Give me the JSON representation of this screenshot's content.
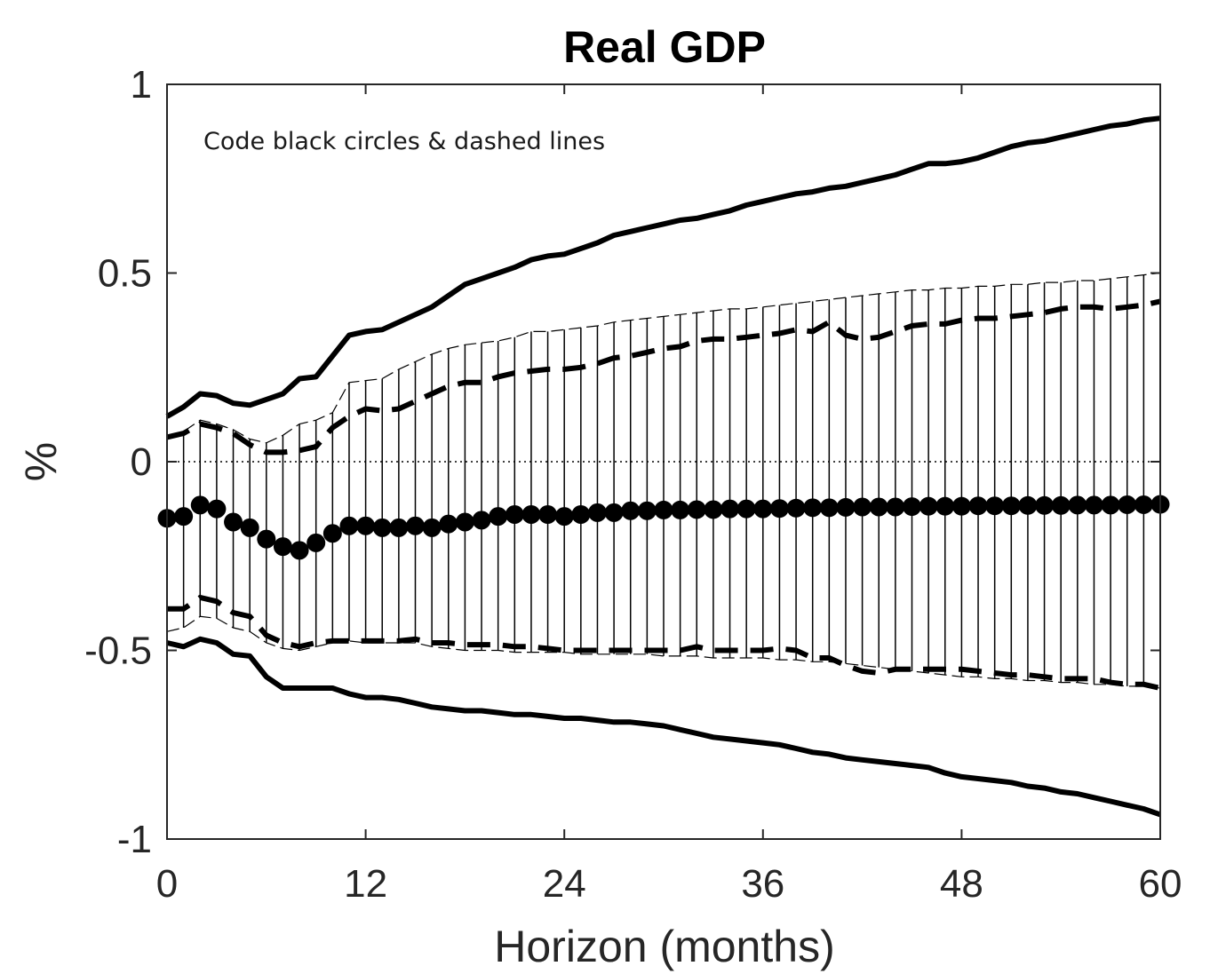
{
  "chart_data": {
    "type": "line",
    "title": "Real GDP",
    "xlabel": "Horizon (months)",
    "ylabel": "%",
    "annotation": "Code black circles & dashed lines",
    "xlim": [
      0,
      60
    ],
    "ylim": [
      -1,
      1
    ],
    "xticks": [
      0,
      12,
      24,
      36,
      48,
      60
    ],
    "xtick_labels": [
      "0",
      "12",
      "24",
      "36",
      "48",
      "60"
    ],
    "yticks": [
      -1,
      -0.5,
      0,
      0.5,
      1
    ],
    "ytick_labels": [
      "-1",
      "-0.5",
      "0",
      "0.5",
      "1"
    ],
    "zero_line": true,
    "grid": false,
    "x": [
      0,
      1,
      2,
      3,
      4,
      5,
      6,
      7,
      8,
      9,
      10,
      11,
      12,
      13,
      14,
      15,
      16,
      17,
      18,
      19,
      20,
      21,
      22,
      23,
      24,
      25,
      26,
      27,
      28,
      29,
      30,
      31,
      32,
      33,
      34,
      35,
      36,
      37,
      38,
      39,
      40,
      41,
      42,
      43,
      44,
      45,
      46,
      47,
      48,
      49,
      50,
      51,
      52,
      53,
      54,
      55,
      56,
      57,
      58,
      59,
      60
    ],
    "series": [
      {
        "style": "black-circles",
        "values": [
          -0.15,
          -0.145,
          -0.115,
          -0.125,
          -0.16,
          -0.175,
          -0.205,
          -0.225,
          -0.235,
          -0.215,
          -0.19,
          -0.17,
          -0.17,
          -0.175,
          -0.175,
          -0.17,
          -0.175,
          -0.165,
          -0.16,
          -0.155,
          -0.145,
          -0.14,
          -0.14,
          -0.14,
          -0.145,
          -0.14,
          -0.135,
          -0.135,
          -0.13,
          -0.13,
          -0.128,
          -0.128,
          -0.127,
          -0.127,
          -0.125,
          -0.125,
          -0.125,
          -0.124,
          -0.123,
          -0.122,
          -0.122,
          -0.121,
          -0.12,
          -0.12,
          -0.12,
          -0.119,
          -0.118,
          -0.118,
          -0.118,
          -0.117,
          -0.117,
          -0.117,
          -0.116,
          -0.116,
          -0.116,
          -0.115,
          -0.115,
          -0.115,
          -0.114,
          -0.114,
          -0.113
        ]
      },
      {
        "style": "dashed-upper",
        "values": [
          0.065,
          0.075,
          0.1,
          0.09,
          0.075,
          0.045,
          0.025,
          0.025,
          0.03,
          0.04,
          0.09,
          0.12,
          0.14,
          0.135,
          0.14,
          0.16,
          0.18,
          0.2,
          0.21,
          0.21,
          0.225,
          0.235,
          0.24,
          0.245,
          0.245,
          0.25,
          0.26,
          0.275,
          0.28,
          0.29,
          0.3,
          0.305,
          0.32,
          0.325,
          0.325,
          0.33,
          0.335,
          0.34,
          0.35,
          0.345,
          0.37,
          0.335,
          0.325,
          0.33,
          0.345,
          0.36,
          0.365,
          0.365,
          0.375,
          0.38,
          0.38,
          0.385,
          0.39,
          0.395,
          0.405,
          0.41,
          0.41,
          0.405,
          0.41,
          0.415,
          0.425
        ]
      },
      {
        "style": "dashed-lower",
        "values": [
          -0.39,
          -0.39,
          -0.36,
          -0.37,
          -0.4,
          -0.41,
          -0.46,
          -0.48,
          -0.49,
          -0.48,
          -0.475,
          -0.475,
          -0.475,
          -0.475,
          -0.475,
          -0.47,
          -0.48,
          -0.48,
          -0.485,
          -0.485,
          -0.485,
          -0.49,
          -0.49,
          -0.495,
          -0.5,
          -0.5,
          -0.5,
          -0.5,
          -0.5,
          -0.5,
          -0.5,
          -0.5,
          -0.49,
          -0.5,
          -0.5,
          -0.5,
          -0.5,
          -0.495,
          -0.5,
          -0.52,
          -0.52,
          -0.54,
          -0.555,
          -0.56,
          -0.55,
          -0.55,
          -0.55,
          -0.55,
          -0.55,
          -0.555,
          -0.56,
          -0.565,
          -0.565,
          -0.57,
          -0.575,
          -0.575,
          -0.575,
          -0.585,
          -0.59,
          -0.59,
          -0.6
        ]
      },
      {
        "style": "solid-upper",
        "values": [
          0.12,
          0.145,
          0.18,
          0.175,
          0.155,
          0.15,
          0.165,
          0.18,
          0.22,
          0.225,
          0.28,
          0.335,
          0.345,
          0.35,
          0.37,
          0.39,
          0.41,
          0.44,
          0.47,
          0.485,
          0.5,
          0.515,
          0.535,
          0.545,
          0.55,
          0.565,
          0.58,
          0.6,
          0.61,
          0.62,
          0.63,
          0.64,
          0.645,
          0.655,
          0.665,
          0.68,
          0.69,
          0.7,
          0.71,
          0.715,
          0.725,
          0.73,
          0.74,
          0.75,
          0.76,
          0.775,
          0.79,
          0.79,
          0.795,
          0.805,
          0.82,
          0.835,
          0.845,
          0.85,
          0.86,
          0.87,
          0.88,
          0.89,
          0.895,
          0.905,
          0.91
        ]
      },
      {
        "style": "solid-lower",
        "values": [
          -0.48,
          -0.49,
          -0.47,
          -0.48,
          -0.51,
          -0.515,
          -0.57,
          -0.6,
          -0.6,
          -0.6,
          -0.6,
          -0.615,
          -0.625,
          -0.625,
          -0.63,
          -0.64,
          -0.65,
          -0.655,
          -0.66,
          -0.66,
          -0.665,
          -0.67,
          -0.67,
          -0.675,
          -0.68,
          -0.68,
          -0.685,
          -0.69,
          -0.69,
          -0.695,
          -0.7,
          -0.71,
          -0.72,
          -0.73,
          -0.735,
          -0.74,
          -0.745,
          -0.75,
          -0.76,
          -0.77,
          -0.775,
          -0.785,
          -0.79,
          -0.795,
          -0.8,
          -0.805,
          -0.81,
          -0.825,
          -0.835,
          -0.84,
          -0.845,
          -0.85,
          -0.86,
          -0.865,
          -0.875,
          -0.88,
          -0.89,
          -0.9,
          -0.91,
          -0.92,
          -0.935
        ]
      },
      {
        "style": "band-upper",
        "values": [
          0.07,
          0.08,
          0.11,
          0.1,
          0.085,
          0.06,
          0.05,
          0.07,
          0.1,
          0.11,
          0.13,
          0.21,
          0.215,
          0.22,
          0.245,
          0.265,
          0.285,
          0.3,
          0.31,
          0.315,
          0.32,
          0.33,
          0.345,
          0.345,
          0.35,
          0.355,
          0.36,
          0.37,
          0.375,
          0.38,
          0.385,
          0.39,
          0.395,
          0.4,
          0.405,
          0.405,
          0.41,
          0.415,
          0.42,
          0.425,
          0.43,
          0.435,
          0.44,
          0.445,
          0.45,
          0.455,
          0.455,
          0.46,
          0.46,
          0.465,
          0.465,
          0.47,
          0.47,
          0.475,
          0.475,
          0.48,
          0.48,
          0.485,
          0.49,
          0.495,
          0.5
        ]
      },
      {
        "style": "band-lower",
        "values": [
          -0.45,
          -0.44,
          -0.41,
          -0.415,
          -0.44,
          -0.45,
          -0.48,
          -0.495,
          -0.5,
          -0.49,
          -0.48,
          -0.475,
          -0.48,
          -0.48,
          -0.48,
          -0.48,
          -0.49,
          -0.495,
          -0.5,
          -0.5,
          -0.5,
          -0.505,
          -0.505,
          -0.505,
          -0.505,
          -0.51,
          -0.51,
          -0.51,
          -0.51,
          -0.51,
          -0.515,
          -0.515,
          -0.515,
          -0.52,
          -0.52,
          -0.52,
          -0.52,
          -0.525,
          -0.525,
          -0.53,
          -0.53,
          -0.535,
          -0.54,
          -0.545,
          -0.55,
          -0.555,
          -0.56,
          -0.565,
          -0.57,
          -0.57,
          -0.575,
          -0.575,
          -0.58,
          -0.58,
          -0.585,
          -0.585,
          -0.59,
          -0.59,
          -0.595,
          -0.595,
          -0.6
        ]
      }
    ]
  }
}
